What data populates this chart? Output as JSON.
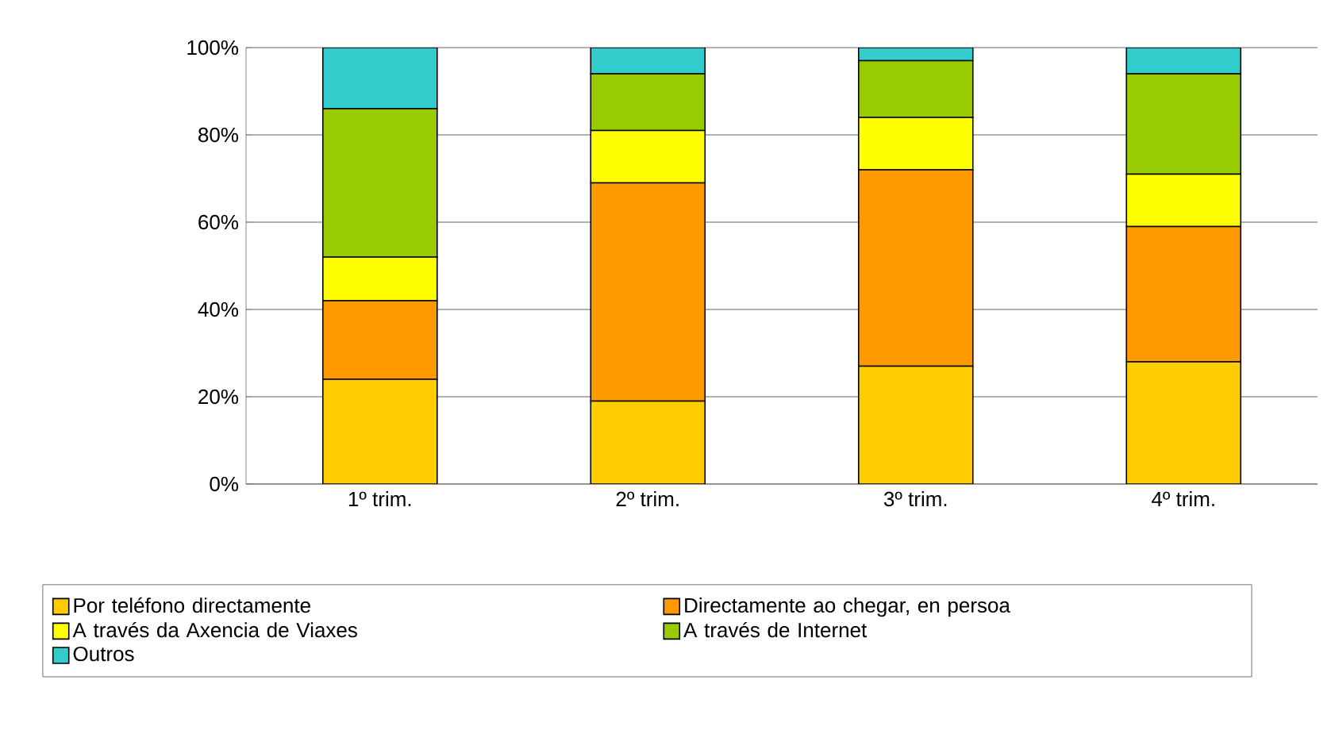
{
  "chart_data": {
    "type": "bar",
    "stacked": true,
    "categories": [
      "1º trim.",
      "2º trim.",
      "3º trim.",
      "4º trim."
    ],
    "series": [
      {
        "name": "Por teléfono directamente",
        "color": "#ffcc00",
        "values": [
          24,
          19,
          27,
          28
        ]
      },
      {
        "name": "Directamente ao chegar, en persoa",
        "color": "#ff9900",
        "values": [
          18,
          50,
          45,
          31
        ]
      },
      {
        "name": "A través da Axencia de Viaxes",
        "color": "#ffff00",
        "values": [
          10,
          12,
          12,
          12
        ]
      },
      {
        "name": "A través de Internet",
        "color": "#99cc00",
        "values": [
          34,
          13,
          13,
          23
        ]
      },
      {
        "name": "Outros",
        "color": "#33cccc",
        "values": [
          14,
          6,
          3,
          6
        ]
      }
    ],
    "ylim": [
      0,
      100
    ],
    "yticks": [
      {
        "value": 0,
        "label": "0%"
      },
      {
        "value": 20,
        "label": "20%"
      },
      {
        "value": 40,
        "label": "40%"
      },
      {
        "value": 60,
        "label": "60%"
      },
      {
        "value": 80,
        "label": "80%"
      },
      {
        "value": 100,
        "label": "100%"
      }
    ],
    "grid": "y",
    "legend": "bottom"
  }
}
